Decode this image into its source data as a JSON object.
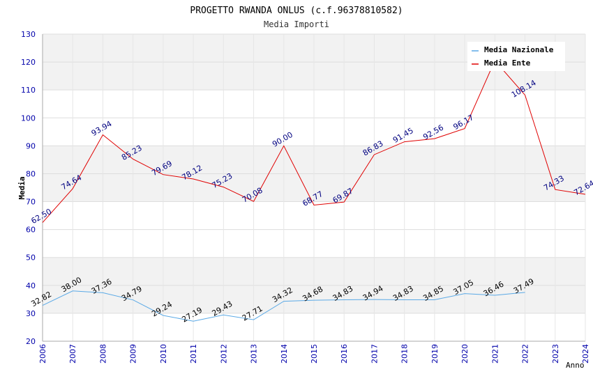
{
  "chart_data": {
    "type": "line",
    "title": "PROGETTO RWANDA ONLUS (c.f.96378810582)",
    "subtitle": "Media Importi",
    "xlabel": "Anno",
    "ylabel": "Media",
    "ylim": [
      20,
      130
    ],
    "yticks": [
      "20",
      "30",
      "40",
      "50",
      "60",
      "70",
      "80",
      "90",
      "100",
      "110",
      "120",
      "130"
    ],
    "categories": [
      "2006",
      "2007",
      "2008",
      "2009",
      "2010",
      "2011",
      "2012",
      "2013",
      "2014",
      "2015",
      "2016",
      "2017",
      "2018",
      "2019",
      "2020",
      "2021",
      "2022",
      "2023",
      "2024"
    ],
    "grid": true,
    "legend_position": "top-right",
    "series": [
      {
        "name": "Media Nazionale",
        "color": "#5aa9e6",
        "label_color": "#000000",
        "values": [
          32.82,
          38.0,
          37.36,
          34.79,
          29.24,
          27.19,
          29.43,
          27.71,
          34.32,
          34.68,
          34.83,
          34.94,
          34.83,
          34.85,
          37.05,
          36.46,
          37.49,
          null,
          null
        ],
        "labels": [
          "32.82",
          "38.00",
          "37.36",
          "34.79",
          "29.24",
          "27.19",
          "29.43",
          "27.71",
          "34.32",
          "34.68",
          "34.83",
          "34.94",
          "34.83",
          "34.85",
          "37.05",
          "36.46",
          "37.49",
          null,
          null
        ]
      },
      {
        "name": "Media Ente",
        "color": "#e00000",
        "label_color": "#000080",
        "values": [
          62.5,
          74.64,
          93.94,
          85.23,
          79.69,
          78.12,
          75.23,
          70.08,
          90.0,
          68.77,
          69.87,
          86.83,
          91.45,
          92.56,
          96.17,
          120.5,
          108.14,
          74.33,
          72.64
        ],
        "labels": [
          "62.50",
          "74.64",
          "93.94",
          "85.23",
          "79.69",
          "78.12",
          "75.23",
          "70.08",
          "90.00",
          "68.77",
          "69.87",
          "86.83",
          "91.45",
          "92.56",
          "96.17",
          null,
          "108.14",
          "74.33",
          "72.64"
        ]
      }
    ]
  }
}
